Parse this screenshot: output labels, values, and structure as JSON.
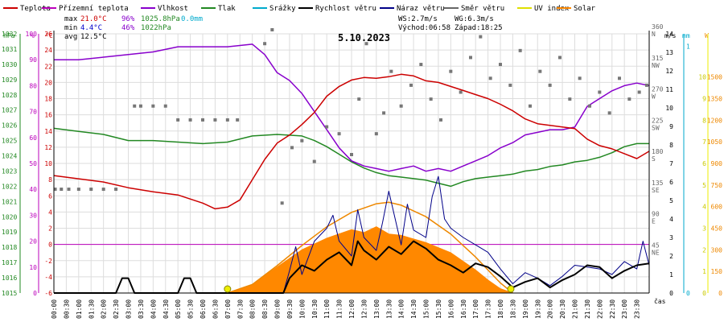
{
  "chart_data": {
    "type": "line",
    "title": "5.10.2023",
    "legend": [
      {
        "name": "Teplota",
        "color": "#cc0000"
      },
      {
        "name": "Přízemní teplota",
        "color": "#bb00bb"
      },
      {
        "name": "Vlhkost",
        "color": "#8800cc"
      },
      {
        "name": "Tlak",
        "color": "#228822"
      },
      {
        "name": "Srážky",
        "color": "#00aacc"
      },
      {
        "name": "Rychlost větru",
        "color": "#000000"
      },
      {
        "name": "Náraz větru",
        "color": "#000088"
      },
      {
        "name": "Směr větru",
        "color": "#666666"
      },
      {
        "name": "UV index",
        "color": "#e0e000"
      },
      {
        "name": "Solar",
        "color": "#ff8800"
      }
    ],
    "stats": {
      "max_label": "max",
      "max_temp": "21.0°C",
      "max_hum": "96%",
      "max_press": "1025.8hPa",
      "max_rain": "0.0mm",
      "min_label": "min",
      "min_temp": "4.4°C",
      "min_hum": "46%",
      "min_press": "1022hPa",
      "avg_label": "avg",
      "avg_temp": "12.5°C",
      "ws": "WS:2.7m/s",
      "wg": "WG:6.3m/s",
      "sunrise": "Východ:06:58",
      "sunset": "Západ:18:25"
    },
    "axis_units": {
      "hpa": "hPa",
      "pct": "%",
      "temp": "°C",
      "ms": "m/s",
      "mm": "mm",
      "w": "W",
      "time": "čas"
    },
    "ticks": {
      "hpa": [
        "1015",
        "1016",
        "1017",
        "1018",
        "1019",
        "1020",
        "1021",
        "1022",
        "1023",
        "1024",
        "1025",
        "1026",
        "1027",
        "1028",
        "1029",
        "1030",
        "1031",
        "1032"
      ],
      "pct": [
        "0",
        "10",
        "20",
        "30",
        "40",
        "50",
        "60",
        "70",
        "80",
        "90",
        "100"
      ],
      "temp": [
        "-6",
        "-4",
        "-2",
        "0",
        "2",
        "4",
        "6",
        "8",
        "10",
        "12",
        "14",
        "16",
        "18",
        "20",
        "22",
        "24",
        "26"
      ],
      "ms": [
        "0",
        "1",
        "2",
        "3",
        "4",
        "5",
        "6",
        "7",
        "8",
        "9",
        "10",
        "11",
        "12",
        "13",
        "14"
      ],
      "mm": [
        "0",
        "1"
      ],
      "w": [
        "0",
        "150",
        "300",
        "450",
        "600",
        "750",
        "900",
        "1050",
        "1200",
        "1350",
        "1500"
      ],
      "uv": [
        "0",
        "1",
        "2",
        "3",
        "4",
        "5",
        "6",
        "7",
        "8",
        "9",
        "10"
      ],
      "dir": [
        {
          "deg": 45,
          "label": "45",
          "compass": "NE"
        },
        {
          "deg": 90,
          "label": "90",
          "compass": "E"
        },
        {
          "deg": 135,
          "label": "135",
          "compass": "SE"
        },
        {
          "deg": 180,
          "label": "180",
          "compass": "S"
        },
        {
          "deg": 225,
          "label": "225",
          "compass": "SW"
        },
        {
          "deg": 270,
          "label": "270",
          "compass": "W"
        },
        {
          "deg": 315,
          "label": "315",
          "compass": "NW"
        },
        {
          "deg": 360,
          "label": "360",
          "compass": "N"
        }
      ],
      "time": [
        "00:00",
        "00:30",
        "01:00",
        "01:30",
        "02:00",
        "02:30",
        "03:00",
        "03:30",
        "04:00",
        "04:30",
        "05:00",
        "05:30",
        "06:00",
        "06:30",
        "07:00",
        "07:30",
        "08:00",
        "08:30",
        "09:00",
        "09:30",
        "10:00",
        "10:30",
        "11:00",
        "11:30",
        "12:00",
        "12:30",
        "13:00",
        "13:30",
        "14:00",
        "14:30",
        "15:00",
        "15:30",
        "16:00",
        "16:30",
        "17:00",
        "17:30",
        "18:00",
        "18:30",
        "19:00",
        "19:30",
        "20:00",
        "20:30",
        "21:00",
        "21:30",
        "22:00",
        "22:30",
        "23:00",
        "23:30"
      ]
    },
    "ranges": {
      "temp": [
        -6,
        26
      ],
      "pct": [
        0,
        100
      ],
      "hpa": [
        1015,
        1032
      ],
      "ms": [
        0,
        14
      ],
      "w": [
        0,
        1500
      ],
      "hours": [
        0,
        24
      ]
    },
    "series": [
      {
        "name": "Teplota",
        "unit": "°C",
        "x_hours": [
          0.0,
          1.0,
          2.0,
          3.0,
          4.0,
          5.0,
          6.0,
          6.5,
          7.0,
          7.5,
          8.0,
          8.5,
          9.0,
          9.5,
          10.0,
          10.5,
          11.0,
          11.5,
          12.0,
          12.5,
          13.0,
          13.5,
          14.0,
          14.5,
          15.0,
          15.5,
          16.0,
          16.5,
          17.0,
          17.5,
          18.0,
          18.5,
          19.0,
          19.5,
          20.0,
          20.5,
          21.0,
          21.5,
          22.0,
          22.5,
          23.0,
          23.5,
          24.0
        ],
        "values": [
          8.5,
          8.1,
          7.7,
          7.0,
          6.5,
          6.1,
          5.1,
          4.4,
          4.6,
          5.5,
          8.0,
          10.5,
          12.5,
          13.5,
          14.8,
          16.3,
          18.3,
          19.5,
          20.3,
          20.6,
          20.5,
          20.7,
          21.0,
          20.8,
          20.2,
          20.0,
          19.5,
          19.0,
          18.5,
          18.0,
          17.3,
          16.5,
          15.5,
          14.9,
          14.7,
          14.5,
          14.3,
          13.0,
          12.2,
          11.8,
          11.2,
          10.6,
          11.5
        ]
      },
      {
        "name": "Vlhkost",
        "unit": "%",
        "x_hours": [
          0.0,
          1.0,
          2.0,
          3.0,
          4.0,
          5.0,
          6.0,
          7.0,
          8.0,
          8.5,
          9.0,
          9.5,
          10.0,
          10.5,
          11.0,
          11.5,
          12.0,
          12.5,
          13.0,
          13.5,
          14.0,
          14.5,
          15.0,
          15.5,
          16.0,
          16.5,
          17.0,
          17.5,
          18.0,
          18.5,
          19.0,
          19.5,
          20.0,
          20.5,
          21.0,
          21.5,
          22.0,
          22.5,
          23.0,
          23.5,
          24.0
        ],
        "values": [
          90,
          90,
          91,
          92,
          93,
          95,
          95,
          95,
          96,
          92,
          85,
          82,
          77,
          70,
          63,
          56,
          51,
          49,
          48,
          47,
          48,
          49,
          47,
          48,
          47,
          49,
          51,
          53,
          56,
          58,
          61,
          62,
          63,
          63,
          64,
          72,
          75,
          78,
          80,
          81,
          80
        ]
      },
      {
        "name": "Tlak",
        "unit": "hPa",
        "x_hours": [
          0.0,
          1.0,
          2.0,
          3.0,
          4.0,
          5.0,
          6.0,
          7.0,
          8.0,
          9.0,
          10.0,
          10.5,
          11.0,
          11.5,
          12.0,
          12.5,
          13.0,
          13.5,
          14.0,
          14.5,
          15.0,
          15.5,
          16.0,
          16.5,
          17.0,
          17.5,
          18.0,
          18.5,
          19.0,
          19.5,
          20.0,
          20.5,
          21.0,
          21.5,
          22.0,
          22.5,
          23.0,
          23.5,
          24.0
        ],
        "values": [
          1025.8,
          1025.6,
          1025.4,
          1025.0,
          1025.0,
          1024.9,
          1024.8,
          1024.9,
          1025.3,
          1025.4,
          1025.3,
          1025.0,
          1024.6,
          1024.1,
          1023.6,
          1023.2,
          1022.9,
          1022.7,
          1022.6,
          1022.5,
          1022.4,
          1022.2,
          1022.0,
          1022.3,
          1022.5,
          1022.6,
          1022.7,
          1022.8,
          1023.0,
          1023.1,
          1023.3,
          1023.4,
          1023.6,
          1023.7,
          1023.9,
          1024.2,
          1024.6,
          1024.8,
          1024.8
        ]
      },
      {
        "name": "Rychlost větru",
        "unit": "m/s",
        "x_hours": [
          0.0,
          2.5,
          2.75,
          3.0,
          3.25,
          5.0,
          5.25,
          5.5,
          5.75,
          9.25,
          9.5,
          10.0,
          10.5,
          11.0,
          11.5,
          12.0,
          12.25,
          12.5,
          13.0,
          13.5,
          14.0,
          14.5,
          15.0,
          15.5,
          16.0,
          16.5,
          17.0,
          17.5,
          18.0,
          18.5,
          19.0,
          19.5,
          20.0,
          20.5,
          21.0,
          21.5,
          22.0,
          22.5,
          23.0,
          23.5,
          24.0
        ],
        "values": [
          0,
          0,
          0.8,
          0.8,
          0,
          0,
          0.8,
          0.8,
          0,
          0,
          0.8,
          1.5,
          1.2,
          1.8,
          2.2,
          1.5,
          2.8,
          2.3,
          1.8,
          2.5,
          2.1,
          2.8,
          2.4,
          1.8,
          1.5,
          1.1,
          1.6,
          1.4,
          0.9,
          0.3,
          0.6,
          0.8,
          0.3,
          0.7,
          1.0,
          1.5,
          1.4,
          0.8,
          1.2,
          1.5,
          1.6
        ]
      },
      {
        "name": "Náraz větru",
        "unit": "m/s",
        "x_hours": [
          0.0,
          2.5,
          2.75,
          3.0,
          3.25,
          5.0,
          5.25,
          5.5,
          5.75,
          9.25,
          9.5,
          9.75,
          10.0,
          10.5,
          11.0,
          11.25,
          11.5,
          12.0,
          12.25,
          12.5,
          13.0,
          13.25,
          13.5,
          14.0,
          14.25,
          14.5,
          15.0,
          15.25,
          15.5,
          15.75,
          16.0,
          16.5,
          17.0,
          17.5,
          18.0,
          18.5,
          19.0,
          19.5,
          20.0,
          20.5,
          21.0,
          21.5,
          22.0,
          22.5,
          23.0,
          23.5,
          23.75,
          24.0
        ],
        "values": [
          0,
          0,
          0.8,
          0.8,
          0,
          0,
          0.8,
          0.8,
          0,
          0,
          1.2,
          2.5,
          1.0,
          2.8,
          3.5,
          4.2,
          2.8,
          2.0,
          4.5,
          3.0,
          2.3,
          3.8,
          5.5,
          2.6,
          4.8,
          3.4,
          3.0,
          5.2,
          6.3,
          4.0,
          3.5,
          3.0,
          2.6,
          2.2,
          1.3,
          0.5,
          1.1,
          0.8,
          0.4,
          0.9,
          1.5,
          1.4,
          1.3,
          1.0,
          1.7,
          1.3,
          2.8,
          1.5
        ]
      },
      {
        "name": "Solar",
        "unit": "W",
        "x_hours": [
          7.0,
          8.0,
          9.0,
          10.0,
          11.0,
          12.0,
          12.5,
          13.0,
          13.5,
          14.0,
          15.0,
          16.0,
          17.0,
          17.5,
          18.0,
          18.5
        ],
        "values": [
          0,
          60,
          180,
          300,
          380,
          440,
          420,
          460,
          410,
          400,
          350,
          280,
          160,
          90,
          30,
          0
        ]
      },
      {
        "name": "Solar envelope",
        "unit": "W",
        "x_hours": [
          7.0,
          8.0,
          9.0,
          10.0,
          11.0,
          12.0,
          13.0,
          13.5,
          14.0,
          15.0,
          16.0,
          17.0,
          18.0,
          18.5
        ],
        "values": [
          0,
          60,
          190,
          330,
          460,
          560,
          620,
          630,
          610,
          530,
          410,
          250,
          70,
          0
        ]
      },
      {
        "name": "Směr větru",
        "unit": "°",
        "x_hours": [
          0.05,
          0.3,
          0.6,
          1.0,
          1.5,
          2.0,
          2.5,
          3.25,
          3.5,
          4.0,
          4.5,
          5.0,
          5.5,
          6.0,
          6.5,
          7.0,
          7.4,
          8.5,
          8.8,
          9.2,
          9.6,
          10.0,
          10.5,
          11.0,
          11.5,
          12.0,
          12.3,
          12.6,
          13.0,
          13.3,
          13.6,
          14.0,
          14.4,
          14.8,
          15.2,
          15.6,
          16.0,
          16.4,
          16.8,
          17.2,
          17.6,
          18.0,
          18.4,
          18.8,
          19.2,
          19.6,
          20.0,
          20.4,
          20.8,
          21.2,
          21.6,
          22.0,
          22.4,
          22.8,
          23.2,
          23.6,
          23.9
        ],
        "values": [
          130,
          130,
          130,
          130,
          130,
          130,
          130,
          250,
          250,
          250,
          250,
          230,
          230,
          230,
          230,
          230,
          230,
          340,
          360,
          110,
          190,
          200,
          170,
          220,
          210,
          180,
          260,
          340,
          210,
          240,
          300,
          250,
          280,
          310,
          260,
          230,
          300,
          270,
          320,
          350,
          290,
          310,
          280,
          330,
          250,
          300,
          280,
          320,
          260,
          290,
          250,
          270,
          240,
          290,
          260,
          270,
          280
        ]
      }
    ],
    "reference_lines": [
      {
        "name": "0°C",
        "value": 0,
        "axis": "temp",
        "color": "#bb00bb"
      }
    ],
    "sun_markers": [
      {
        "label": "Východ",
        "x_hours": 7.0
      },
      {
        "label": "Západ",
        "x_hours": 18.42
      }
    ],
    "grid": true,
    "legend_placement": "top"
  }
}
